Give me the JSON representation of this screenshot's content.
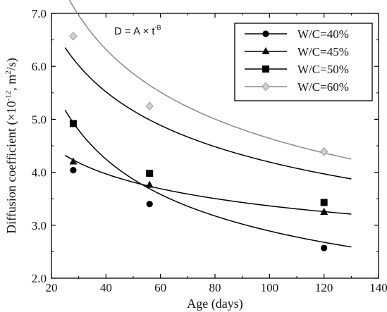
{
  "chart_data": {
    "type": "scatter",
    "title": "",
    "xlabel": "Age (days)",
    "ylabel": "Diffusion coefficient (×10",
    "ylabel_exp": "-12",
    "ylabel_tail": ", m",
    "ylabel_exp2": "2",
    "ylabel_end": "/s)",
    "xlim": [
      20,
      140
    ],
    "ylim": [
      2.0,
      7.0
    ],
    "x_ticks": [
      "20",
      "40",
      "60",
      "80",
      "100",
      "120",
      "140"
    ],
    "y_ticks": [
      "2.0",
      "3.0",
      "4.0",
      "5.0",
      "6.0",
      "7.0"
    ],
    "grid": false,
    "legend_position": "top-right",
    "annotation": {
      "main": "D = A × t",
      "sup": "-B"
    },
    "series": [
      {
        "name": "W/C=40%",
        "marker": "circle",
        "color": "#000000",
        "x": [
          28,
          56,
          120
        ],
        "y": [
          4.04,
          3.4,
          2.57
        ],
        "fit": {
          "A": 20.0,
          "B": 0.42,
          "x_range": [
            25,
            130
          ]
        }
      },
      {
        "name": "W/C=45%",
        "marker": "triangle",
        "color": "#000000",
        "x": [
          28,
          56,
          120
        ],
        "y": [
          4.2,
          3.76,
          3.25
        ],
        "fit": {
          "A": 7.71,
          "B": 0.18,
          "x_range": [
            25,
            130
          ]
        }
      },
      {
        "name": "W/C=50%",
        "marker": "square",
        "color": "#000000",
        "x": [
          28,
          56,
          120
        ],
        "y": [
          4.92,
          3.98,
          3.43
        ],
        "fit": {
          "A": 16.69,
          "B": 0.3,
          "x_range": [
            25,
            130
          ]
        }
      },
      {
        "name": "W/C=60%",
        "marker": "diamond",
        "color": "#9a9a9a",
        "x": [
          28,
          56,
          120
        ],
        "y": [
          6.57,
          5.25,
          4.39
        ],
        "fit": {
          "A": 21.91,
          "B": 0.337,
          "x_range": [
            25,
            130
          ]
        }
      }
    ]
  }
}
